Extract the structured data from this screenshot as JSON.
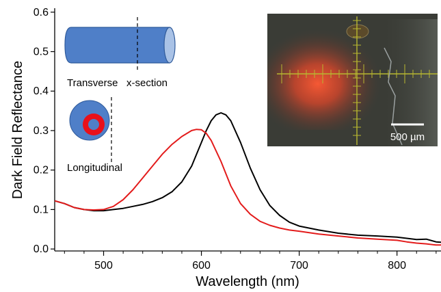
{
  "chart_data": {
    "type": "line",
    "xlabel": "Wavelength (nm)",
    "ylabel": "Dark Field Reflectance",
    "xlim": [
      450,
      845
    ],
    "ylim": [
      -0.005,
      0.61
    ],
    "xticks": [
      500,
      600,
      700,
      800
    ],
    "yticks": [
      0.0,
      0.1,
      0.2,
      0.3,
      0.4,
      0.5,
      0.6
    ],
    "ytick_labels": [
      "0.0",
      "0.1",
      "0.2",
      "0.3",
      "0.4",
      "0.5",
      "0.6"
    ],
    "grid": false,
    "series": [
      {
        "color": "#000000",
        "x": [
          450,
          460,
          470,
          480,
          490,
          500,
          510,
          520,
          530,
          540,
          550,
          560,
          570,
          580,
          590,
          600,
          605,
          610,
          615,
          620,
          625,
          630,
          640,
          650,
          660,
          670,
          680,
          690,
          700,
          720,
          740,
          760,
          780,
          800,
          810,
          820,
          830,
          840,
          845
        ],
        "y": [
          0.122,
          0.115,
          0.105,
          0.1,
          0.097,
          0.097,
          0.1,
          0.103,
          0.108,
          0.113,
          0.12,
          0.13,
          0.145,
          0.17,
          0.21,
          0.27,
          0.3,
          0.325,
          0.34,
          0.345,
          0.34,
          0.325,
          0.27,
          0.205,
          0.15,
          0.11,
          0.085,
          0.068,
          0.058,
          0.048,
          0.04,
          0.035,
          0.033,
          0.03,
          0.027,
          0.024,
          0.025,
          0.018,
          0.017
        ]
      },
      {
        "color": "#e31b1b",
        "x": [
          450,
          460,
          470,
          480,
          490,
          500,
          510,
          520,
          530,
          540,
          550,
          560,
          570,
          580,
          590,
          595,
          600,
          605,
          610,
          620,
          630,
          640,
          650,
          660,
          670,
          680,
          690,
          700,
          720,
          740,
          760,
          780,
          800,
          810,
          820,
          830,
          840,
          845
        ],
        "y": [
          0.122,
          0.115,
          0.105,
          0.1,
          0.099,
          0.1,
          0.108,
          0.125,
          0.15,
          0.18,
          0.21,
          0.24,
          0.265,
          0.285,
          0.3,
          0.303,
          0.302,
          0.293,
          0.275,
          0.222,
          0.16,
          0.115,
          0.088,
          0.07,
          0.06,
          0.053,
          0.048,
          0.045,
          0.038,
          0.033,
          0.028,
          0.025,
          0.022,
          0.018,
          0.015,
          0.013,
          0.01,
          0.01
        ]
      }
    ]
  },
  "insets": {
    "transverse_label": "Transverse",
    "xsection_label": "x-section",
    "longitudinal_label": "Longitudinal",
    "photo_scale_label": "500 µm"
  },
  "colors": {
    "rod_fill": "#4f7fc8",
    "rod_stroke": "#2f5a9a",
    "rod_end": "#a9c2e6",
    "ring_red": "#e8101a",
    "photo_bg": "#3a3c36",
    "photo_glow": "#ff4a2a",
    "crosshair": "#b8b830"
  }
}
